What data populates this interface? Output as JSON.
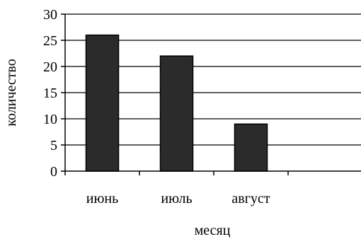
{
  "chart_data": {
    "type": "bar",
    "categories": [
      "июнь",
      "июль",
      "август",
      ""
    ],
    "values": [
      26,
      22,
      9,
      null
    ],
    "title": "",
    "xlabel": "месяц",
    "ylabel": "количество",
    "ylim": [
      0,
      30
    ],
    "yticks": [
      0,
      5,
      10,
      15,
      20,
      25,
      30
    ],
    "grid": true,
    "legend": "none",
    "bar_color": "#2b2b2b",
    "bar_stroke": "#000000"
  }
}
